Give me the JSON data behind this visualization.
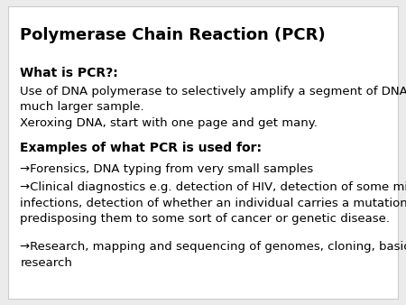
{
  "background_color": "#ebebeb",
  "slide_bg": "#ffffff",
  "title": "Polymerase Chain Reaction (PCR)",
  "title_fontsize": 13,
  "title_color": "#000000",
  "section1_header": "What is PCR?:",
  "section1_header_fontsize": 10,
  "section1_lines": [
    "Use of DNA polymerase to selectively amplify a segment of DNA from a",
    "much larger sample.",
    "Xeroxing DNA, start with one page and get many."
  ],
  "section2_header": "Examples of what PCR is used for:",
  "section2_header_fontsize": 10,
  "section2_bullets": [
    "→Forensics, DNA typing from very small samples",
    "→Clinical diagnostics e.g. detection of HIV, detection of some microbial\ninfections, detection of whether an individual carries a mutation\npredisposing them to some sort of cancer or genetic disease.",
    "→Research, mapping and sequencing of genomes, cloning, basic\nresearch"
  ],
  "body_fontsize": 9.5,
  "body_color": "#000000",
  "font_family": "DejaVu Sans"
}
